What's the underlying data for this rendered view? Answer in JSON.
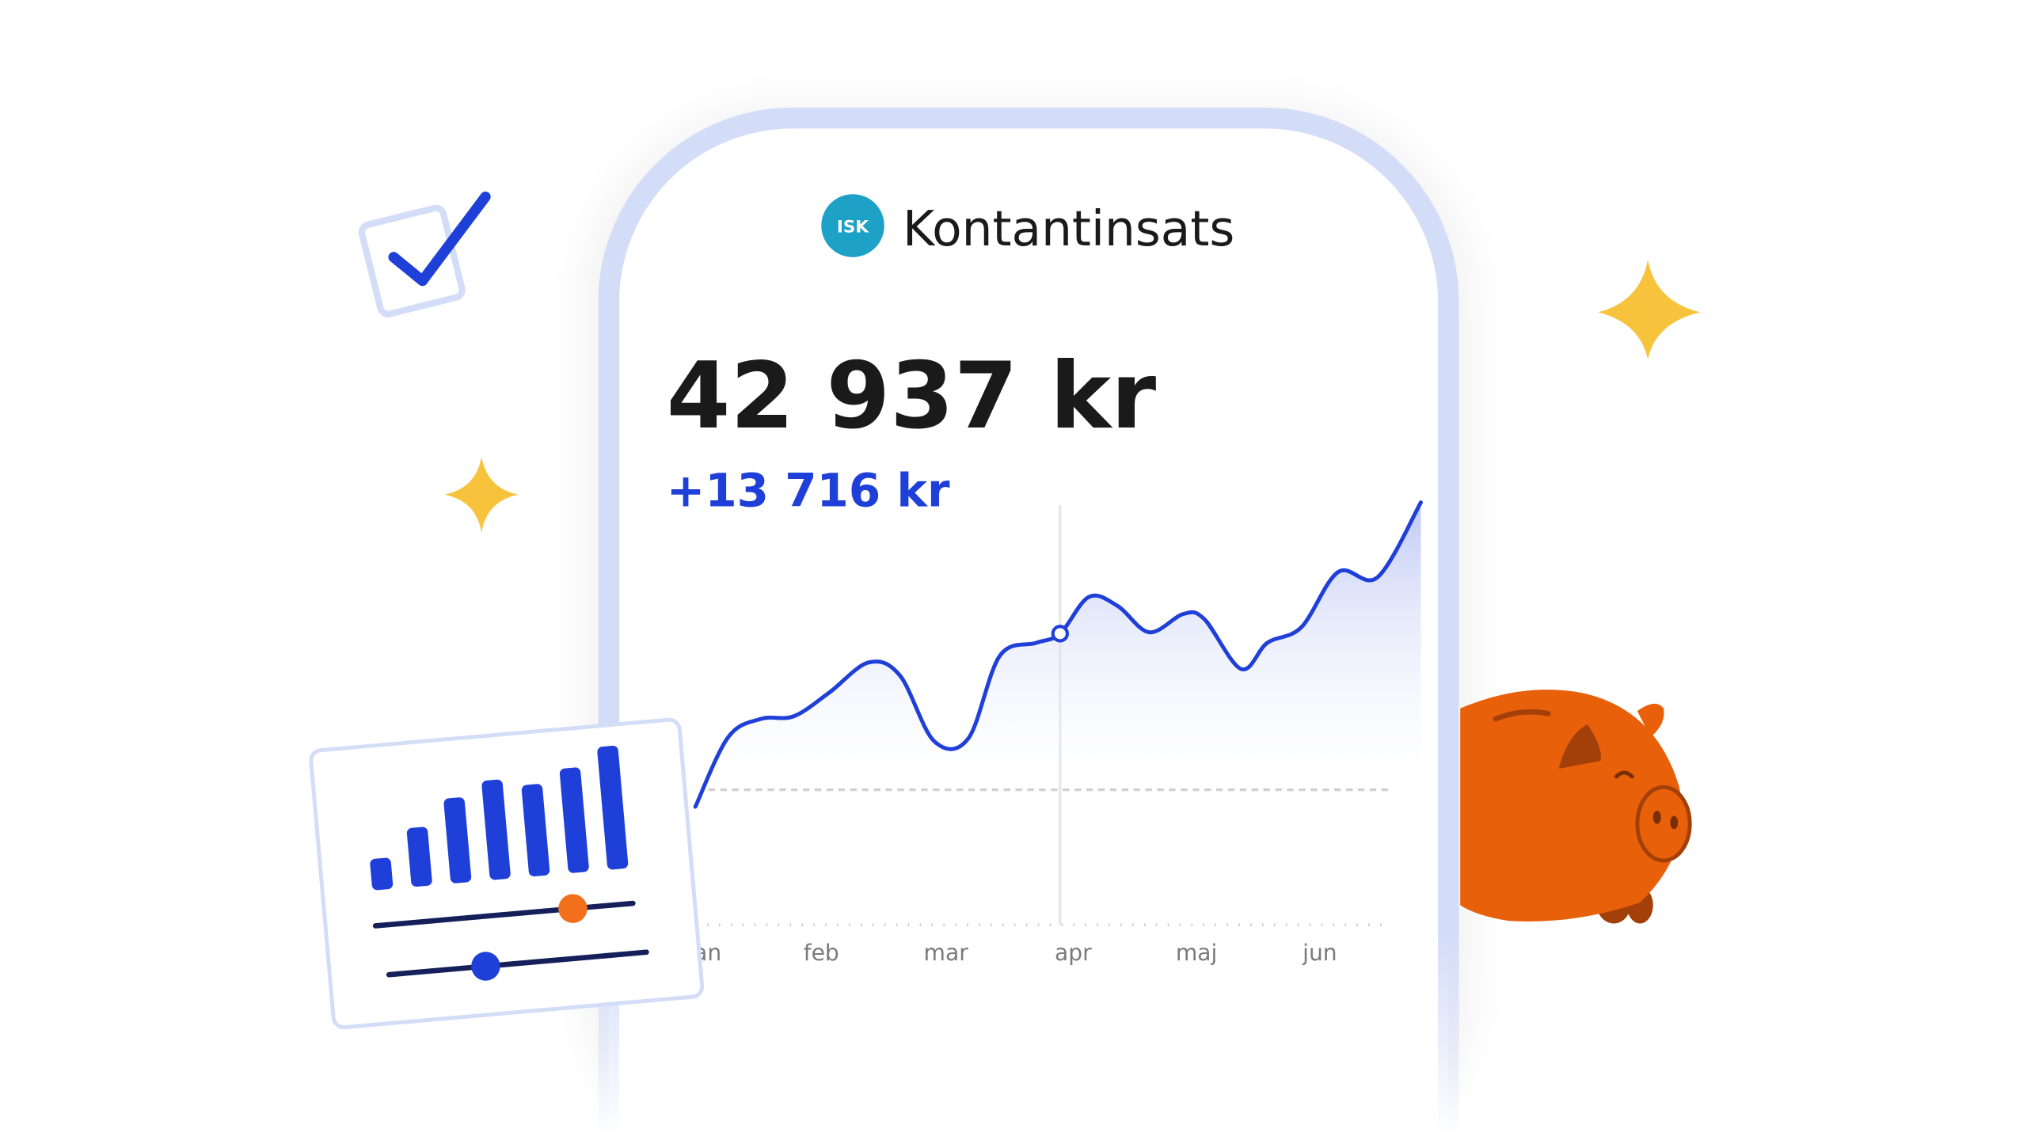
{
  "header": {
    "badge": "ISK",
    "title": "Kontantinsats"
  },
  "balance": "42 937 kr",
  "change": "+13 716 kr",
  "x_axis": {
    "labels": [
      "jan",
      "feb",
      "mar",
      "apr",
      "maj",
      "jun"
    ]
  }
}
